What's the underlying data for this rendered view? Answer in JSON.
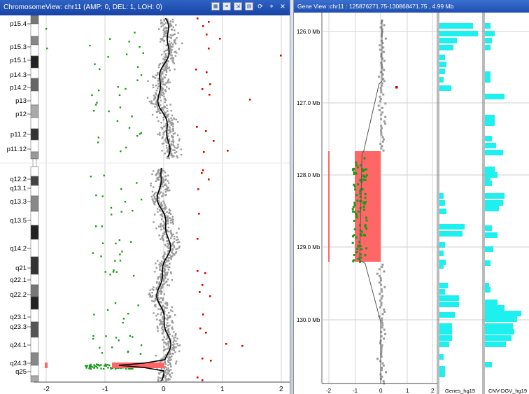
{
  "left_window": {
    "title": "ChromosomeView: chr11 (AMP: 0, DEL: 1, LOH: 0)",
    "cytobands": [
      "p15.4",
      "p15.3",
      "p15.1",
      "p14.3",
      "p14.2",
      "p13",
      "p12",
      "p11.2",
      "p11.12",
      "q12.2",
      "q13.1",
      "q13.3",
      "q13.5",
      "q14.2",
      "q21",
      "q22.1",
      "q22.2",
      "q23.1",
      "q23.3",
      "q24.1",
      "q24.3",
      "q25"
    ],
    "x_ticks": [
      "-2",
      "-1",
      "0",
      "1",
      "2"
    ]
  },
  "right_window": {
    "title": "Gene View :chr11 : 125876271.75-130868471.75 , 4.99 Mb",
    "y_ticks": [
      "126.0 Mb",
      "127.0 Mb",
      "128.0 Mb",
      "129.0 Mb",
      "130.0 Mb"
    ],
    "x_ticks": [
      "-2",
      "-1",
      "0",
      "1",
      "2"
    ],
    "tracks": [
      "Genes_hg19",
      "CNV-DGV_hg19"
    ]
  },
  "colors": {
    "points": "#9a9a9a",
    "loss": "#1a9a1a",
    "gain": "#e00000",
    "deletion": "#ff6666",
    "trend": "#000000",
    "track_bar": "#1ef0f0",
    "titlebar": "#1f4fb0"
  },
  "icons": [
    "zoom-icon",
    "menu-icon",
    "export-icon",
    "chart-icon",
    "refresh-icon",
    "pin-icon",
    "close-icon"
  ]
}
